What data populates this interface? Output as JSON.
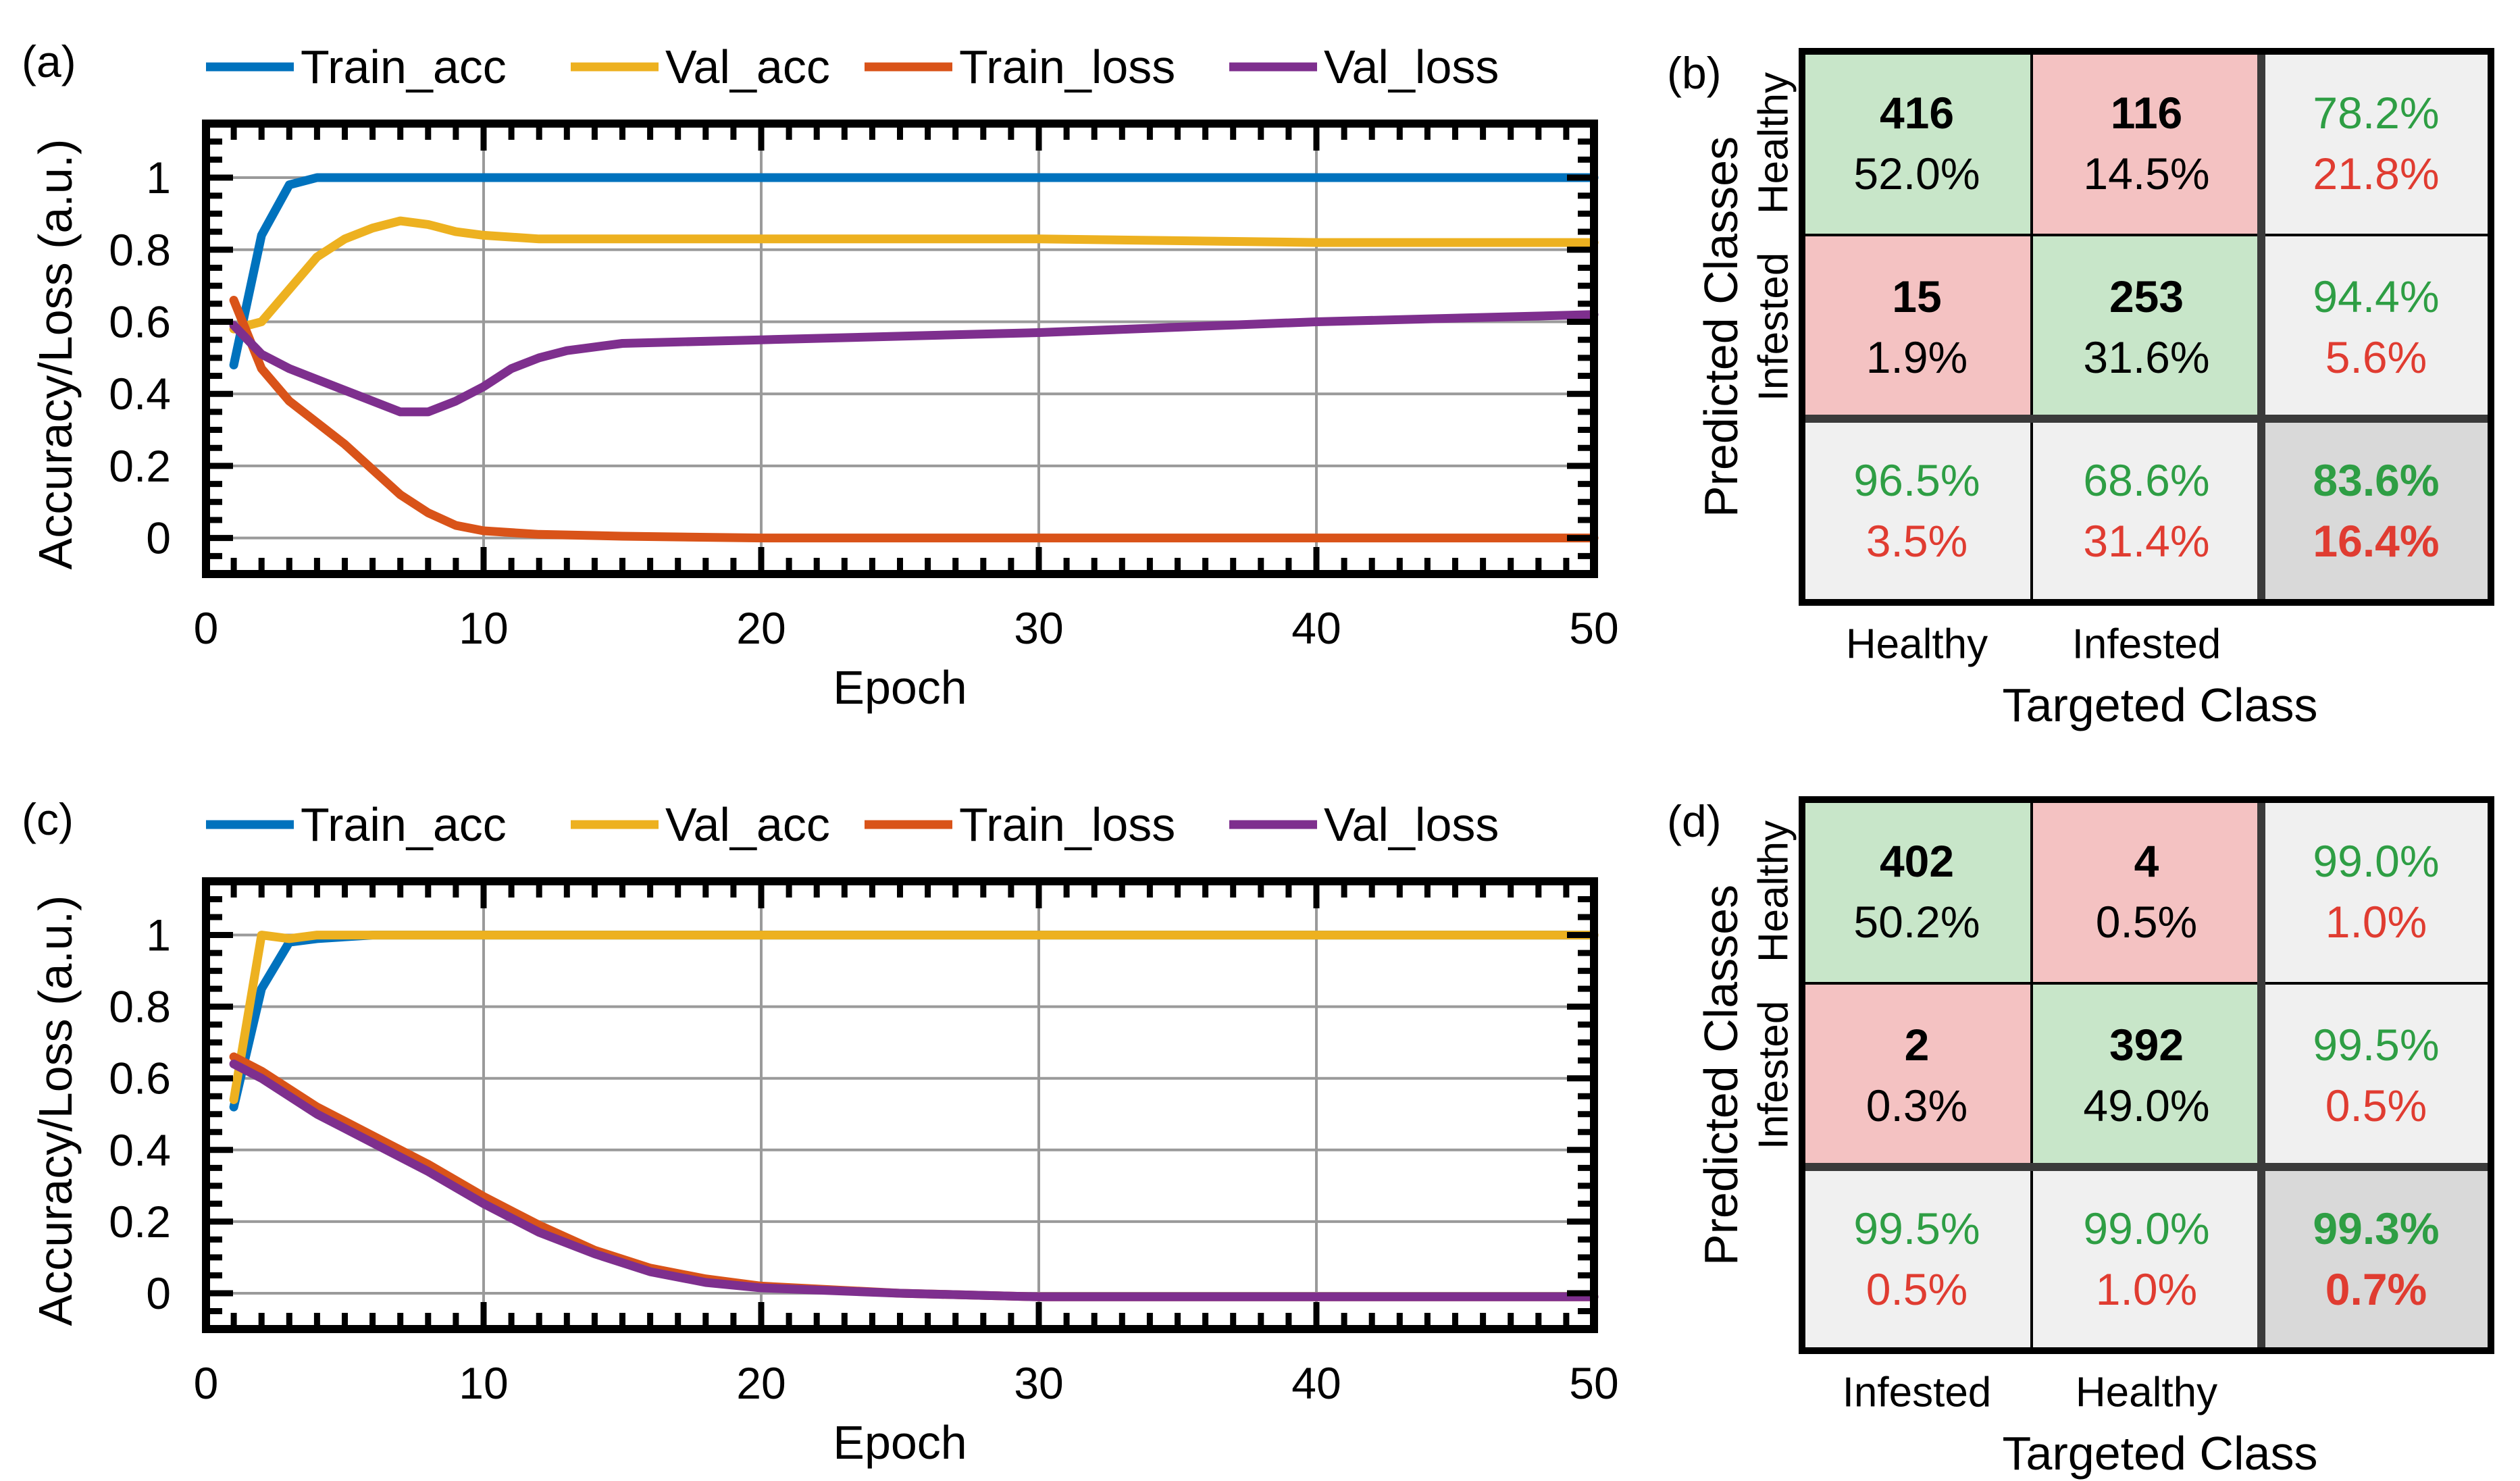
{
  "chart_data": [
    {
      "panel": "(a)",
      "type": "line",
      "xlabel": "Epoch",
      "ylabel": "Accuracy/Loss (a.u.)",
      "xlim": [
        0,
        50
      ],
      "ylim": [
        -0.1,
        1.15
      ],
      "xticks": [
        0,
        10,
        20,
        30,
        40,
        50
      ],
      "xtick_labels": [
        "0",
        "10",
        "20",
        "30",
        "40",
        "50"
      ],
      "yticks": [
        0,
        0.2,
        0.4,
        0.6,
        0.8,
        1
      ],
      "ytick_labels": [
        "0",
        "0.2",
        "0.4",
        "0.6",
        "0.8",
        "1"
      ],
      "grid": true,
      "legend_position": "top",
      "series": [
        {
          "name": "Train_acc",
          "color": "#0072BD",
          "x": [
            1,
            2,
            3,
            4,
            5,
            7,
            10,
            15,
            20,
            30,
            40,
            50
          ],
          "y": [
            0.48,
            0.84,
            0.98,
            1.0,
            1.0,
            1.0,
            1.0,
            1.0,
            1.0,
            1.0,
            1.0,
            1.0
          ]
        },
        {
          "name": "Val_acc",
          "color": "#EDB120",
          "x": [
            1,
            2,
            3,
            4,
            5,
            6,
            7,
            8,
            9,
            10,
            12,
            15,
            20,
            30,
            40,
            50
          ],
          "y": [
            0.58,
            0.6,
            0.69,
            0.78,
            0.83,
            0.86,
            0.88,
            0.87,
            0.85,
            0.84,
            0.83,
            0.83,
            0.83,
            0.83,
            0.82,
            0.82
          ]
        },
        {
          "name": "Train_loss",
          "color": "#D95319",
          "x": [
            1,
            2,
            3,
            4,
            5,
            6,
            7,
            8,
            9,
            10,
            12,
            15,
            20,
            30,
            40,
            50
          ],
          "y": [
            0.66,
            0.47,
            0.38,
            0.32,
            0.26,
            0.19,
            0.12,
            0.07,
            0.035,
            0.02,
            0.01,
            0.005,
            0.0,
            0.0,
            0.0,
            0.0
          ]
        },
        {
          "name": "Val_loss",
          "color": "#7E2F8E",
          "x": [
            1,
            2,
            3,
            4,
            5,
            6,
            7,
            8,
            9,
            10,
            11,
            12,
            13,
            15,
            20,
            30,
            40,
            50
          ],
          "y": [
            0.59,
            0.51,
            0.47,
            0.44,
            0.41,
            0.38,
            0.35,
            0.35,
            0.38,
            0.42,
            0.47,
            0.5,
            0.52,
            0.54,
            0.55,
            0.57,
            0.6,
            0.62
          ]
        }
      ]
    },
    {
      "panel": "(b)",
      "type": "table",
      "subtype": "confusion_matrix",
      "xlabel": "Targeted Class",
      "ylabel": "Predicted Classes",
      "col_labels": [
        "Healthy",
        "Infested"
      ],
      "row_labels": [
        "Healthy",
        "Infested"
      ],
      "counts": [
        [
          416,
          116
        ],
        [
          15,
          253
        ]
      ],
      "cell_percents": [
        [
          "52.0%",
          "14.5%"
        ],
        [
          "1.9%",
          "31.6%"
        ]
      ],
      "row_summary": [
        [
          "78.2%",
          "21.8%"
        ],
        [
          "94.4%",
          "5.6%"
        ]
      ],
      "col_summary": [
        [
          "96.5%",
          "3.5%"
        ],
        [
          "68.6%",
          "31.4%"
        ]
      ],
      "overall": [
        "83.6%",
        "16.4%"
      ]
    },
    {
      "panel": "(c)",
      "type": "line",
      "xlabel": "Epoch",
      "ylabel": "Accuracy/Loss (a.u.)",
      "xlim": [
        0,
        50
      ],
      "ylim": [
        -0.1,
        1.15
      ],
      "xticks": [
        0,
        10,
        20,
        30,
        40,
        50
      ],
      "xtick_labels": [
        "0",
        "10",
        "20",
        "30",
        "40",
        "50"
      ],
      "yticks": [
        0,
        0.2,
        0.4,
        0.6,
        0.8,
        1
      ],
      "ytick_labels": [
        "0",
        "0.2",
        "0.4",
        "0.6",
        "0.8",
        "1"
      ],
      "grid": true,
      "legend_position": "top",
      "series": [
        {
          "name": "Train_acc",
          "color": "#0072BD",
          "x": [
            1,
            2,
            3,
            4,
            6,
            10,
            20,
            30,
            40,
            50
          ],
          "y": [
            0.52,
            0.85,
            0.98,
            0.99,
            1.0,
            1.0,
            1.0,
            1.0,
            1.0,
            1.0
          ]
        },
        {
          "name": "Val_acc",
          "color": "#EDB120",
          "x": [
            1,
            2,
            3,
            4,
            6,
            10,
            20,
            30,
            40,
            50
          ],
          "y": [
            0.54,
            1.0,
            0.99,
            1.0,
            1.0,
            1.0,
            1.0,
            1.0,
            1.0,
            1.0
          ]
        },
        {
          "name": "Train_loss",
          "color": "#D95319",
          "x": [
            1,
            2,
            4,
            6,
            8,
            10,
            12,
            14,
            16,
            18,
            20,
            25,
            30,
            40,
            50
          ],
          "y": [
            0.66,
            0.62,
            0.52,
            0.44,
            0.36,
            0.27,
            0.19,
            0.12,
            0.07,
            0.04,
            0.02,
            0.0,
            -0.01,
            -0.01,
            -0.01
          ]
        },
        {
          "name": "Val_loss",
          "color": "#7E2F8E",
          "x": [
            1,
            2,
            4,
            6,
            8,
            10,
            12,
            14,
            16,
            18,
            20,
            25,
            30,
            40,
            50
          ],
          "y": [
            0.64,
            0.6,
            0.5,
            0.42,
            0.34,
            0.25,
            0.17,
            0.11,
            0.06,
            0.03,
            0.015,
            0.0,
            -0.01,
            -0.01,
            -0.01
          ]
        }
      ]
    },
    {
      "panel": "(d)",
      "type": "table",
      "subtype": "confusion_matrix",
      "xlabel": "Targeted Class",
      "ylabel": "Predicted Classes",
      "col_labels": [
        "Infested",
        "Healthy"
      ],
      "row_labels": [
        "Healthy",
        "Infested"
      ],
      "counts": [
        [
          402,
          4
        ],
        [
          2,
          392
        ]
      ],
      "cell_percents": [
        [
          "50.2%",
          "0.5%"
        ],
        [
          "0.3%",
          "49.0%"
        ]
      ],
      "row_summary": [
        [
          "99.0%",
          "1.0%"
        ],
        [
          "99.5%",
          "0.5%"
        ]
      ],
      "col_summary": [
        [
          "99.5%",
          "0.5%"
        ],
        [
          "99.0%",
          "1.0%"
        ]
      ],
      "overall": [
        "99.3%",
        "0.7%"
      ]
    }
  ],
  "colors": {
    "correct_cell": "#C8E6C9",
    "wrong_cell": "#F4C2C2",
    "summary_cell": "#F0F0F0",
    "overall_cell": "#D9D9D9",
    "correct_text": "#2E9E44",
    "wrong_text": "#E03C31"
  }
}
